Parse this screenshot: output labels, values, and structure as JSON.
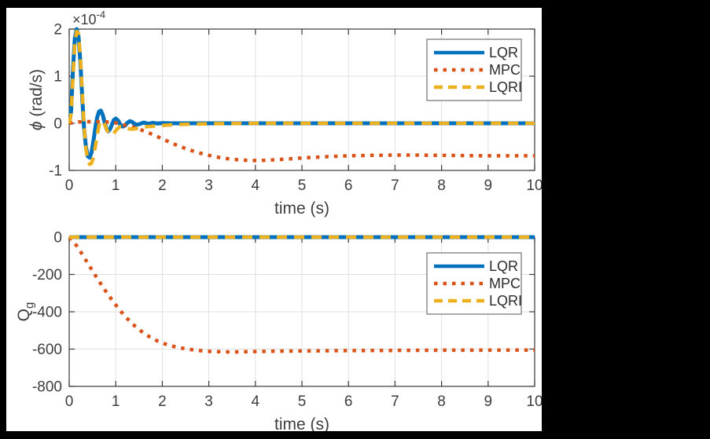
{
  "window": {
    "background_color": "#000000",
    "canvas_color": "#ffffff"
  },
  "colors": {
    "lqr_blue": "#0072BD",
    "mpc_orange": "#D95319",
    "lqri_yellow": "#EDB120",
    "axis": "#3A3A3A",
    "grid": "#E0E0E0",
    "tick_label": "#3D3D3D",
    "legend_border": "#707070",
    "legend_text": "#2B2B2B"
  },
  "chart_data": [
    {
      "type": "line",
      "title": "",
      "xlabel": "time (s)",
      "ylabel_parts": [
        {
          "t": "ϕ",
          "italic": true
        },
        {
          "t": " (rad/s)"
        }
      ],
      "y_scale_label": {
        "mantissa": "×10",
        "exponent": "-4"
      },
      "xlim": [
        0,
        10
      ],
      "ylim": [
        -1,
        2
      ],
      "xticks": [
        0,
        1,
        2,
        3,
        4,
        5,
        6,
        7,
        8,
        9,
        10
      ],
      "yticks": [
        2,
        1,
        0,
        -1
      ],
      "grid": true,
      "legend": {
        "position": "upper-right-inset",
        "entries": [
          "LQR",
          "MPC",
          "LQRI"
        ]
      },
      "series": [
        {
          "name": "LQR",
          "color": "#0072BD",
          "style": "solid",
          "x": [
            0,
            0.04,
            0.08,
            0.12,
            0.16,
            0.2,
            0.24,
            0.28,
            0.32,
            0.36,
            0.4,
            0.44,
            0.48,
            0.52,
            0.56,
            0.6,
            0.64,
            0.68,
            0.72,
            0.76,
            0.8,
            0.84,
            0.88,
            0.92,
            0.96,
            1,
            1.05,
            1.1,
            1.15,
            1.2,
            1.25,
            1.3,
            1.35,
            1.4,
            1.45,
            1.5,
            1.6,
            1.7,
            1.8,
            1.9,
            2,
            2.2,
            2.5,
            3,
            4,
            5,
            6,
            7,
            8,
            9,
            10
          ],
          "y": [
            0,
            0.25,
            1.1,
            1.8,
            2.0,
            1.85,
            1.3,
            0.55,
            -0.1,
            -0.5,
            -0.7,
            -0.73,
            -0.62,
            -0.38,
            -0.1,
            0.12,
            0.25,
            0.27,
            0.18,
            0.03,
            -0.12,
            -0.17,
            -0.12,
            -0.02,
            0.07,
            0.1,
            0.06,
            -0.03,
            -0.07,
            -0.05,
            0.01,
            0.045,
            0.03,
            -0.01,
            -0.03,
            -0.02,
            0.015,
            -0.01,
            0.008,
            -0.005,
            0.003,
            0,
            0,
            0,
            0,
            0,
            0,
            0,
            0,
            0,
            0
          ]
        },
        {
          "name": "MPC",
          "color": "#D95319",
          "style": "dotted",
          "x": [
            0,
            0.2,
            0.4,
            0.6,
            0.8,
            1,
            1.2,
            1.4,
            1.6,
            1.8,
            2,
            2.2,
            2.4,
            2.6,
            2.8,
            3,
            3.2,
            3.4,
            3.6,
            3.8,
            4,
            4.2,
            4.5,
            4.8,
            5.1,
            5.5,
            6,
            6.5,
            7,
            7.5,
            8,
            8.5,
            9,
            9.5,
            10
          ],
          "y": [
            0,
            0.03,
            0.035,
            0.035,
            0.03,
            0.01,
            -0.04,
            -0.09,
            -0.16,
            -0.24,
            -0.33,
            -0.42,
            -0.5,
            -0.57,
            -0.63,
            -0.68,
            -0.72,
            -0.75,
            -0.77,
            -0.785,
            -0.79,
            -0.785,
            -0.77,
            -0.75,
            -0.73,
            -0.71,
            -0.69,
            -0.68,
            -0.675,
            -0.675,
            -0.68,
            -0.685,
            -0.69,
            -0.69,
            -0.69
          ]
        },
        {
          "name": "LQRI",
          "color": "#EDB120",
          "style": "dashed",
          "x": [
            0,
            0.04,
            0.08,
            0.12,
            0.16,
            0.2,
            0.24,
            0.28,
            0.32,
            0.36,
            0.4,
            0.44,
            0.48,
            0.52,
            0.56,
            0.6,
            0.64,
            0.68,
            0.72,
            0.76,
            0.8,
            0.85,
            0.9,
            0.95,
            1,
            1.05,
            1.1,
            1.2,
            1.3,
            1.4,
            1.5,
            1.6,
            1.8,
            2,
            2.25,
            2.5,
            3,
            3.5,
            4,
            5,
            6,
            7,
            8,
            9,
            10
          ],
          "y": [
            0,
            0.2,
            0.95,
            1.7,
            1.95,
            1.9,
            1.4,
            0.65,
            -0.05,
            -0.55,
            -0.78,
            -0.87,
            -0.85,
            -0.72,
            -0.5,
            -0.25,
            -0.05,
            0.04,
            0.05,
            -0.02,
            -0.12,
            -0.22,
            -0.25,
            -0.22,
            -0.16,
            -0.1,
            -0.07,
            -0.09,
            -0.12,
            -0.12,
            -0.1,
            -0.08,
            -0.06,
            -0.045,
            -0.03,
            -0.02,
            -0.01,
            -0.005,
            0,
            0,
            0,
            0,
            0,
            0,
            0
          ]
        }
      ]
    },
    {
      "type": "line",
      "title": "",
      "xlabel": "time (s)",
      "ylabel_parts": [
        {
          "t": "Q"
        },
        {
          "t": "g",
          "sub": true
        }
      ],
      "y_scale_label": null,
      "xlim": [
        0,
        10
      ],
      "ylim": [
        -800,
        0
      ],
      "xticks": [
        0,
        1,
        2,
        3,
        4,
        5,
        6,
        7,
        8,
        9,
        10
      ],
      "yticks": [
        0,
        -200,
        -400,
        -600,
        -800
      ],
      "grid": true,
      "legend": {
        "position": "upper-right-inset",
        "entries": [
          "LQR",
          "MPC",
          "LQRI"
        ]
      },
      "series": [
        {
          "name": "LQR",
          "color": "#0072BD",
          "style": "solid",
          "x": [
            0,
            10
          ],
          "y": [
            0,
            0
          ]
        },
        {
          "name": "MPC",
          "color": "#D95319",
          "style": "dotted",
          "x": [
            0,
            0.1,
            0.2,
            0.3,
            0.4,
            0.5,
            0.6,
            0.7,
            0.8,
            0.9,
            1,
            1.1,
            1.2,
            1.3,
            1.4,
            1.5,
            1.6,
            1.7,
            1.8,
            1.9,
            2,
            2.1,
            2.2,
            2.4,
            2.6,
            2.8,
            3,
            3.2,
            3.4,
            3.6,
            4,
            4.5,
            5,
            6,
            7,
            8,
            9,
            10
          ],
          "y": [
            0,
            -25,
            -60,
            -100,
            -140,
            -180,
            -220,
            -258,
            -295,
            -330,
            -363,
            -395,
            -424,
            -450,
            -474,
            -495,
            -514,
            -530,
            -545,
            -557,
            -567,
            -576,
            -583,
            -594,
            -602,
            -608,
            -612,
            -614,
            -615,
            -615,
            -613,
            -611,
            -610,
            -608,
            -607,
            -606,
            -606,
            -605
          ]
        },
        {
          "name": "LQRI",
          "color": "#EDB120",
          "style": "dashed",
          "x": [
            0,
            10
          ],
          "y": [
            0,
            0
          ]
        }
      ]
    }
  ]
}
